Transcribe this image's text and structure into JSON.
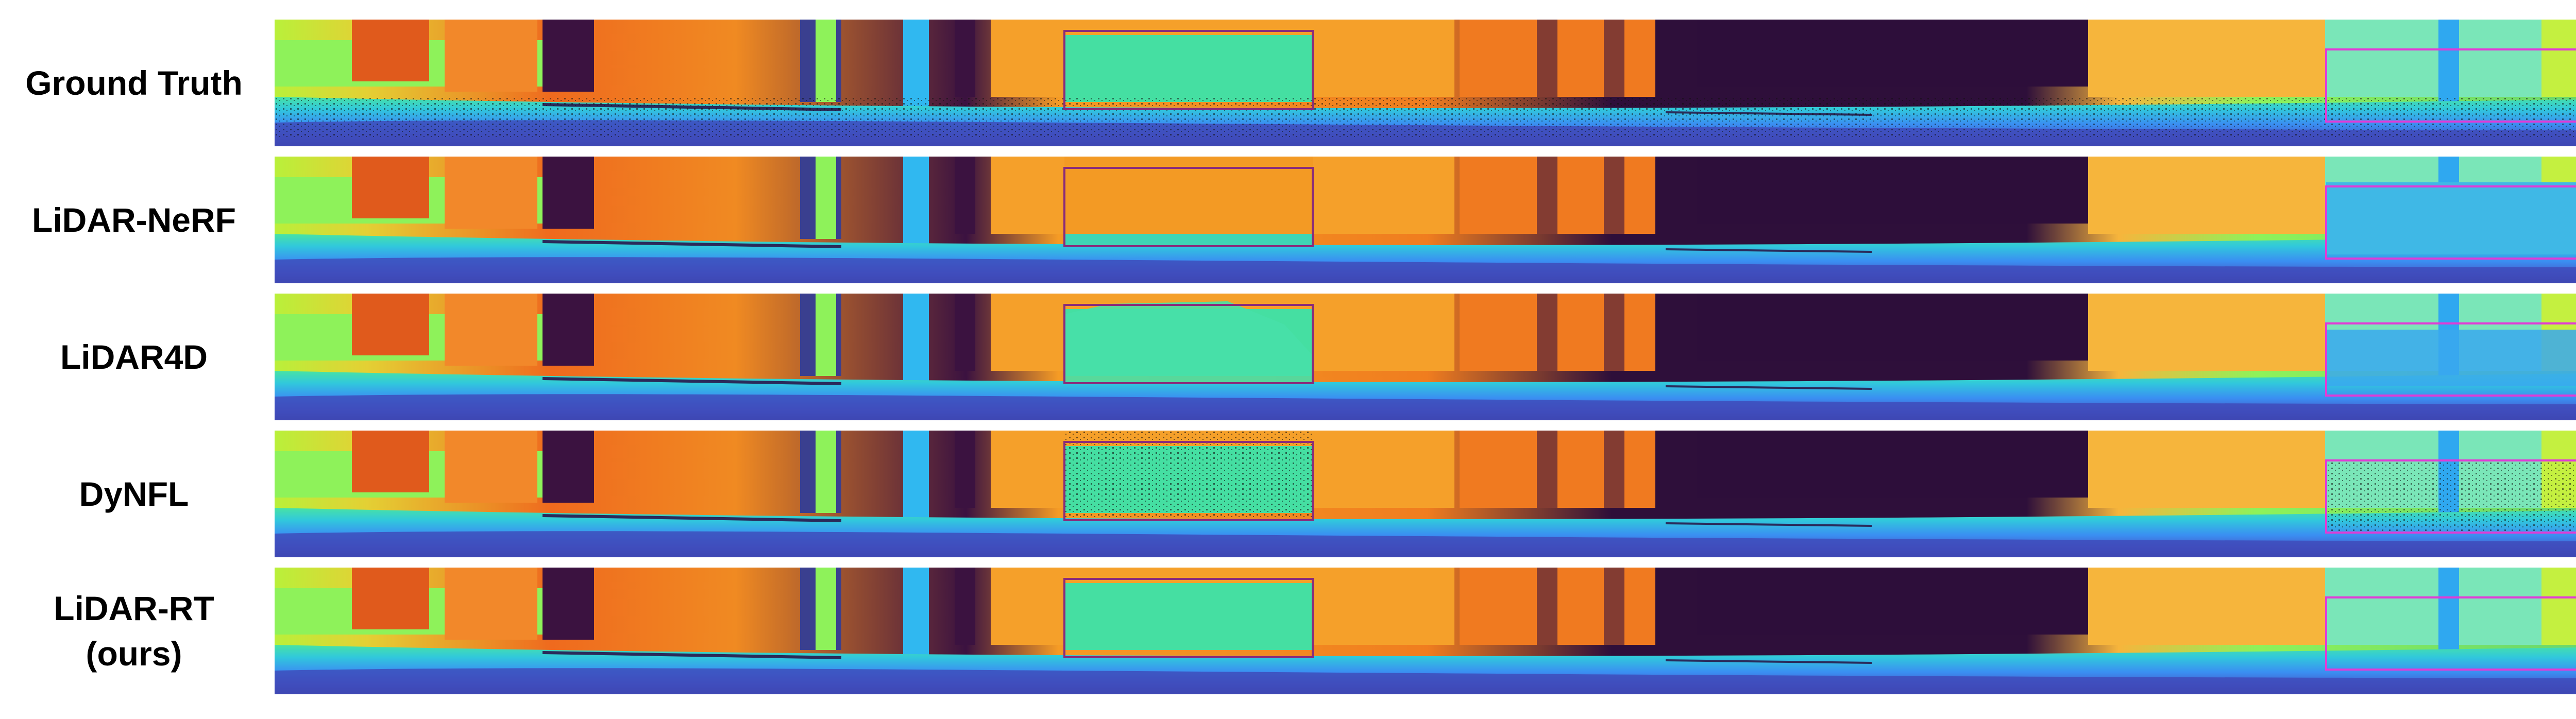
{
  "rows": [
    {
      "label": "Ground Truth",
      "method": "ground-truth"
    },
    {
      "label": "LiDAR-NeRF",
      "method": "lidar-nerf"
    },
    {
      "label": "LiDAR4D",
      "method": "lidar4d"
    },
    {
      "label": "DyNFL",
      "method": "dynfl"
    },
    {
      "label": "LiDAR-RT\n(ours)",
      "method": "lidar-rt"
    }
  ],
  "colors": {
    "roi_box_1": "#8a2c7a",
    "roi_box_2": "#e23ad6",
    "colormap": "turbo"
  }
}
